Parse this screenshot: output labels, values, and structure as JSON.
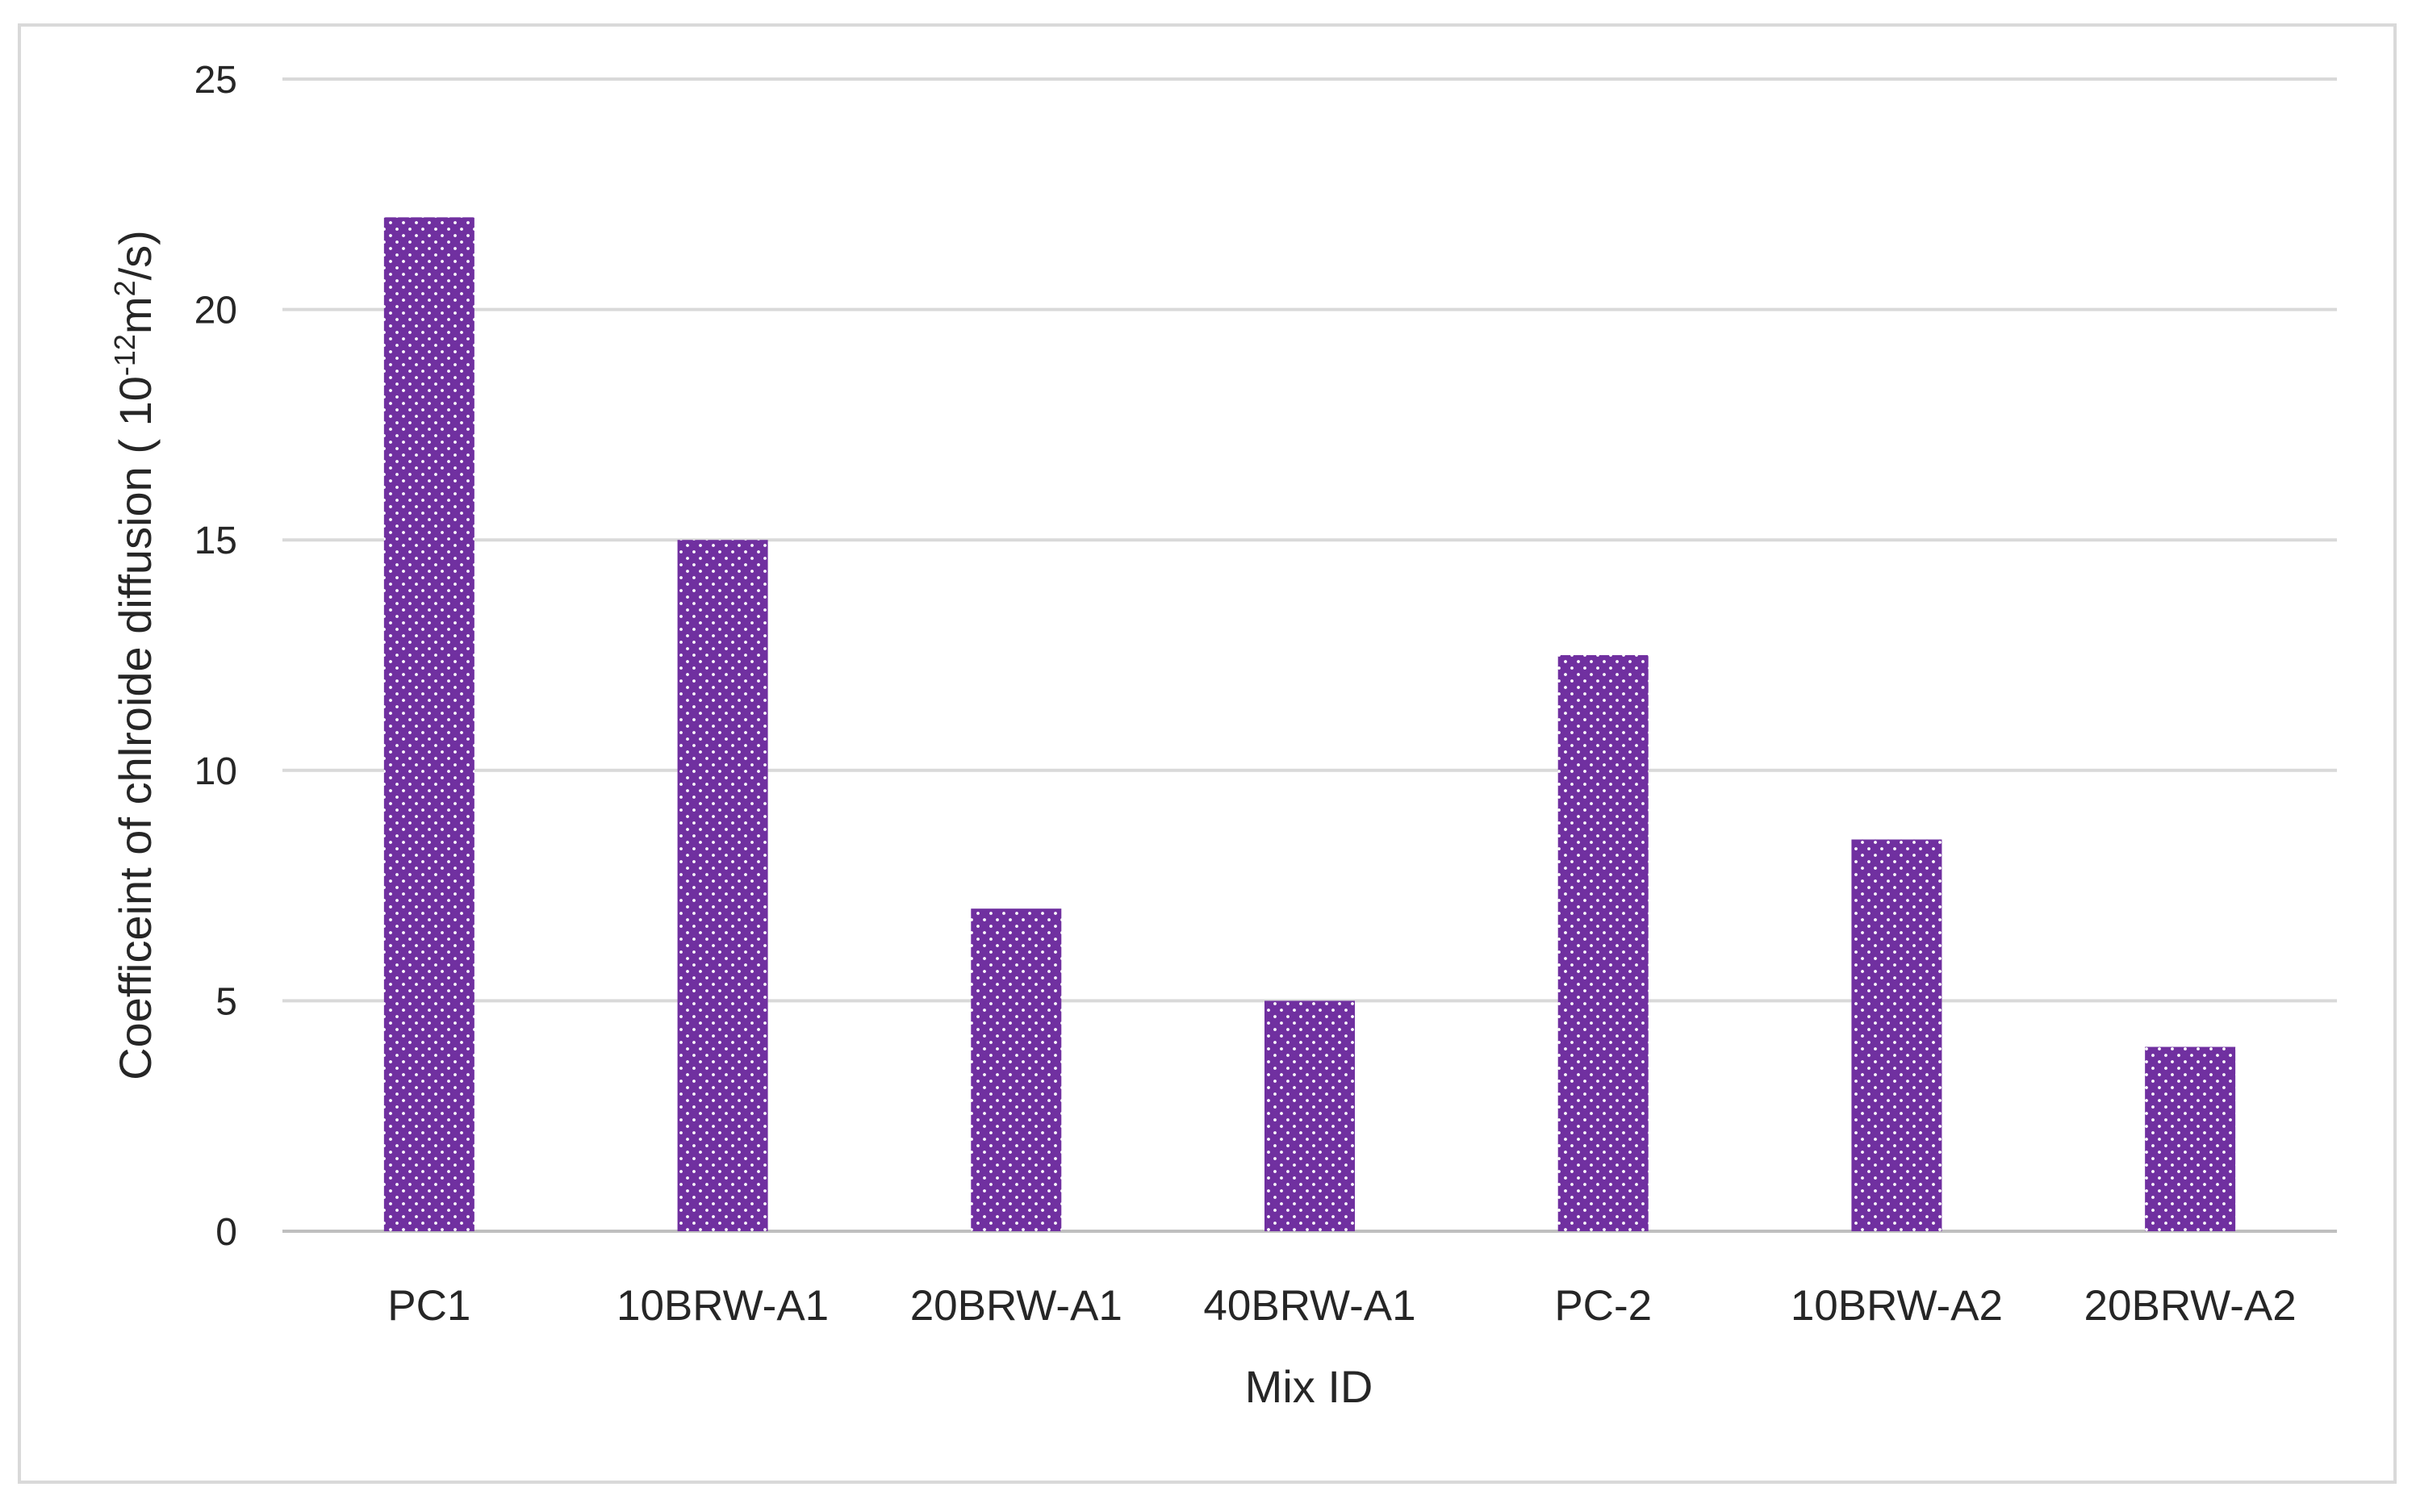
{
  "chart_data": {
    "type": "bar",
    "categories": [
      "PC1",
      "10BRW-A1",
      "20BRW-A1",
      "40BRW-A1",
      "PC-2",
      "10BRW-A2",
      "20BRW-A2"
    ],
    "values": [
      22,
      15,
      7,
      5,
      12.5,
      8.5,
      4
    ],
    "xlabel": "Mix ID",
    "ylabel": {
      "prefix": "Coefficeint of chlroide diffusion ( 10",
      "exp1": "-12",
      "mid": "m",
      "exp2": "2",
      "suffix": "/s)"
    },
    "ylim": [
      0,
      25
    ],
    "yticks": [
      "0",
      "5",
      "10",
      "15",
      "20",
      "25"
    ],
    "grid": true,
    "legend": "none",
    "bar_color": "#7030A0",
    "bar_pattern": "white dots"
  }
}
